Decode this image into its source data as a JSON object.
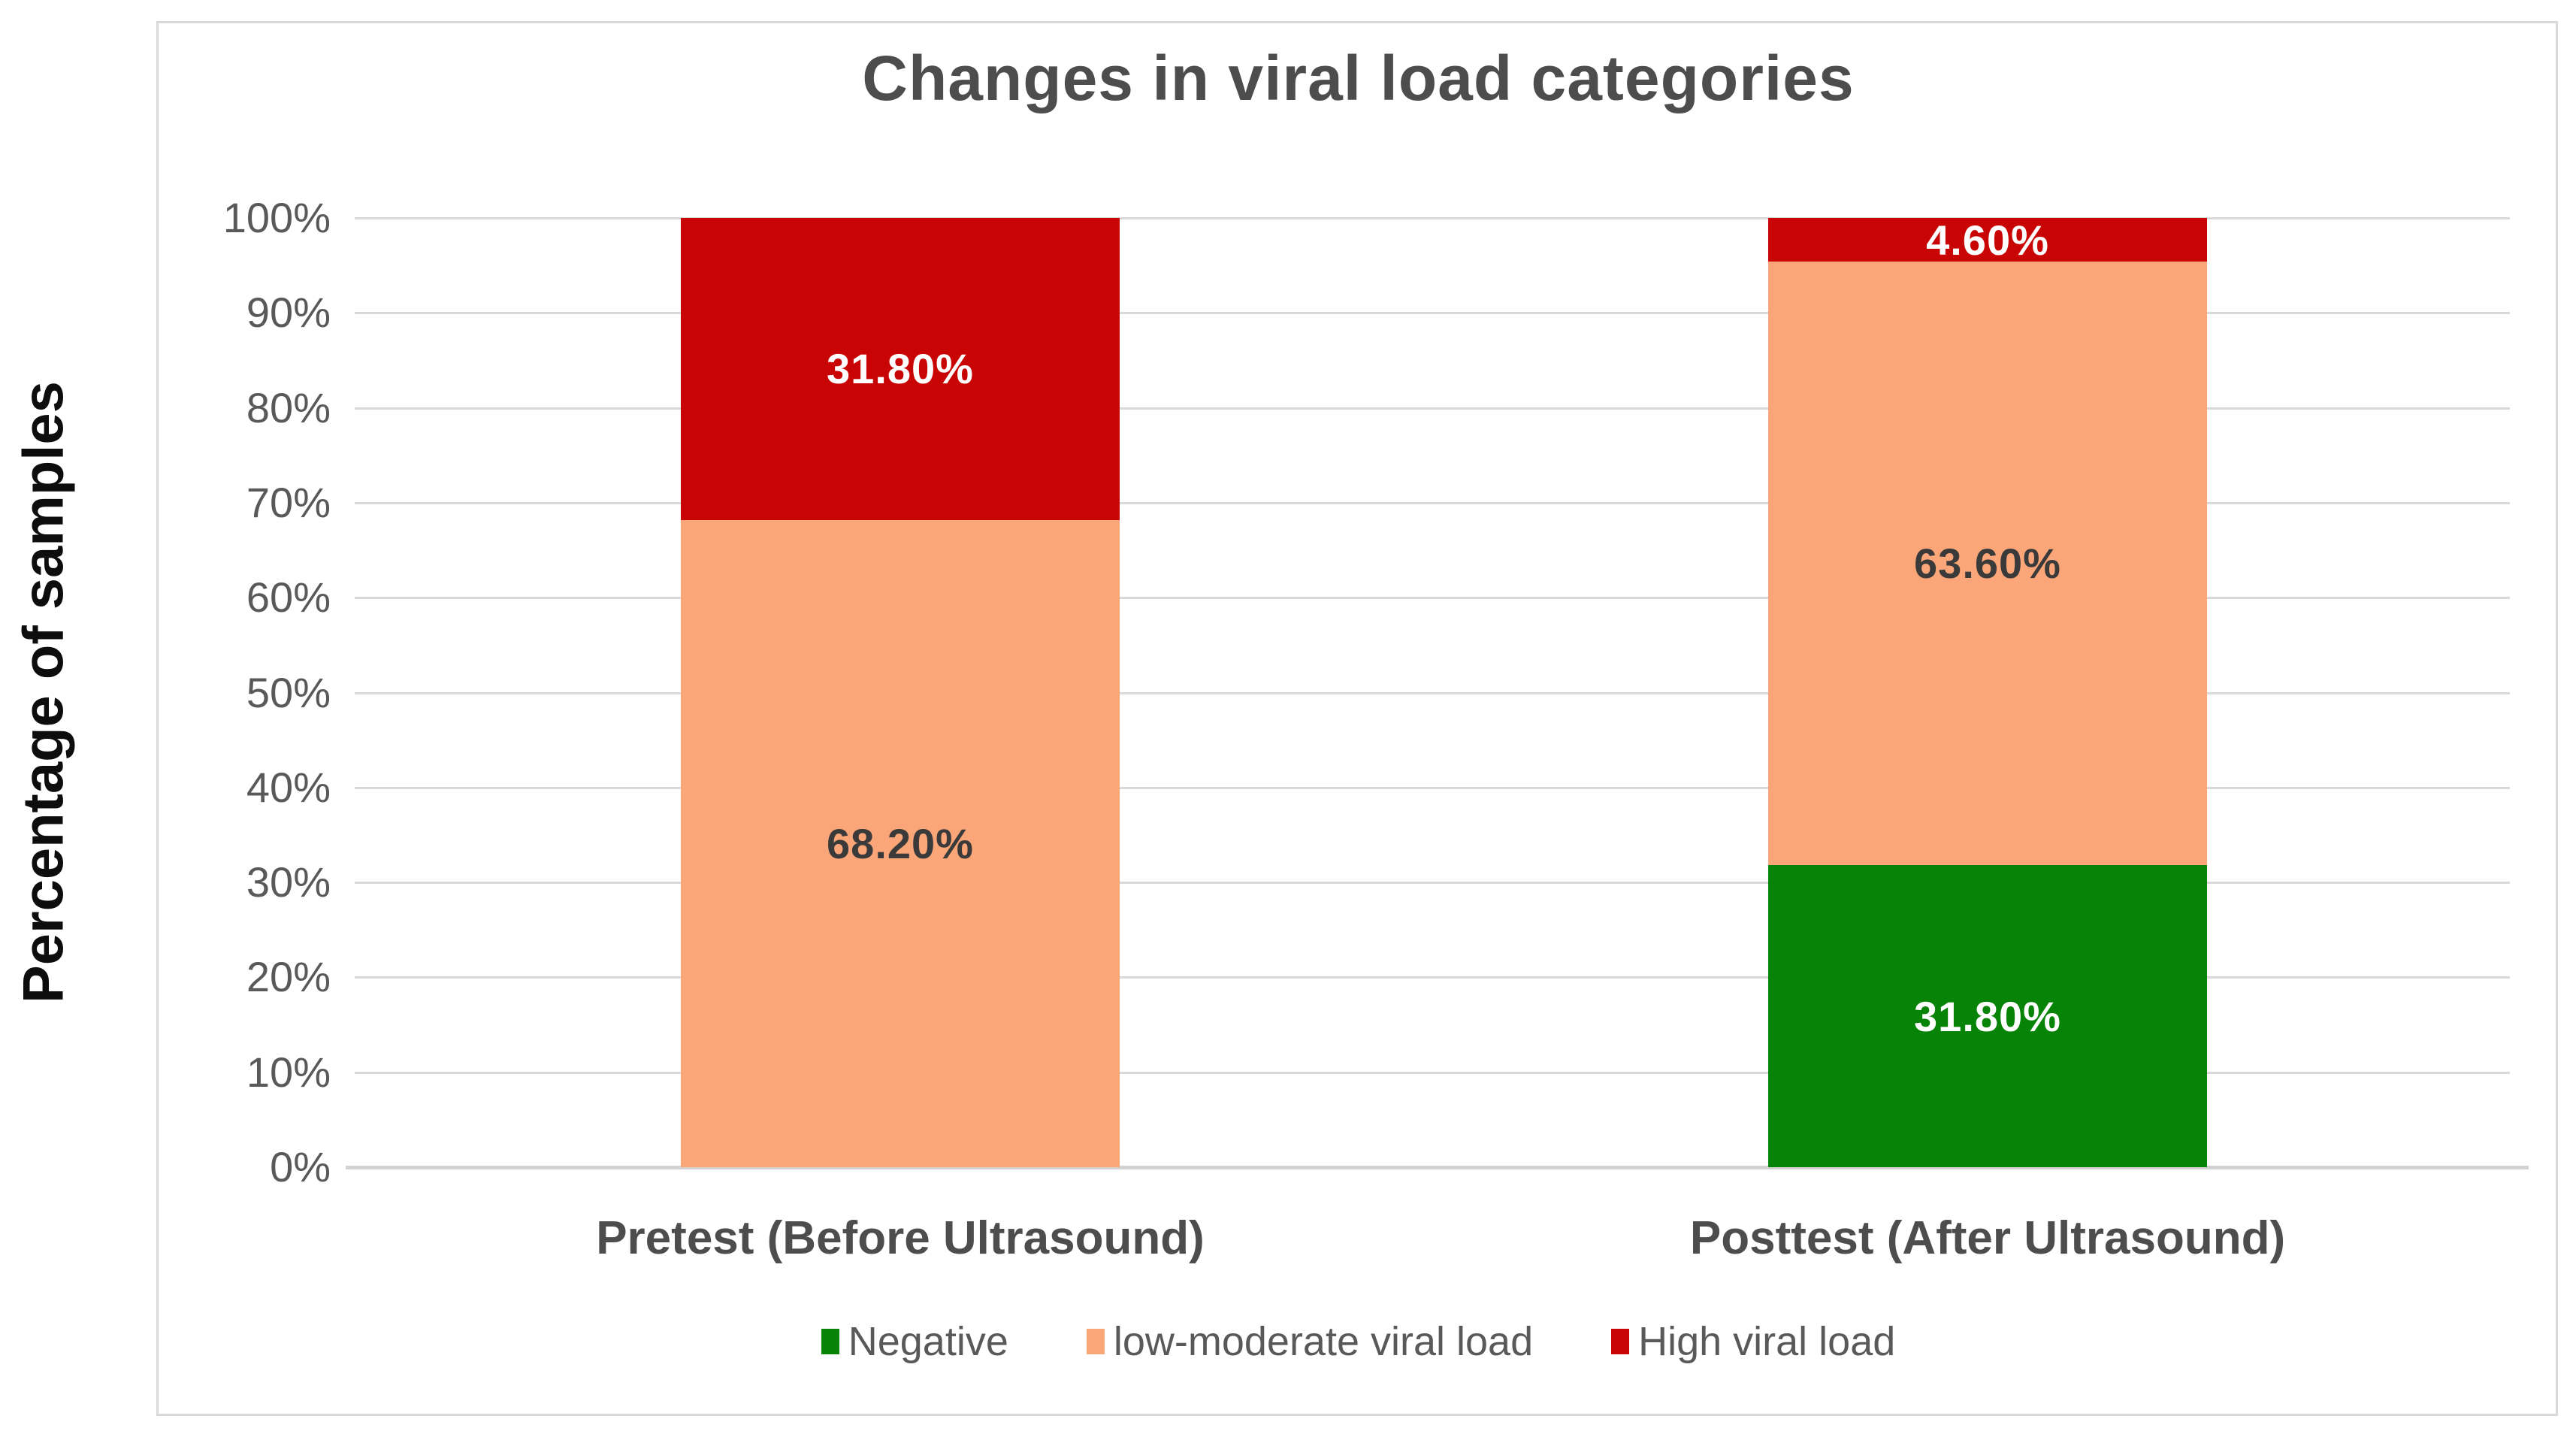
{
  "chart_data": {
    "type": "bar",
    "subtype": "stacked-percentage",
    "title": "Changes in viral load categories",
    "ylabel": "Percentage of samples",
    "xlabel": "",
    "categories": [
      "Pretest (Before Ultrasound)",
      "Posttest (After Ultrasound)"
    ],
    "series": [
      {
        "name": "Negative",
        "color": "#078307",
        "label_color": "#ffffff",
        "values": [
          0,
          31.8
        ],
        "labels": [
          "",
          "31.80%"
        ]
      },
      {
        "name": "low-moderate viral load",
        "color": "#FAA679",
        "label_color": "#3a3a3a",
        "values": [
          68.2,
          63.6
        ],
        "labels": [
          "68.20%",
          "63.60%"
        ]
      },
      {
        "name": "High viral load",
        "color": "#C90404",
        "label_color": "#ffffff",
        "values": [
          31.8,
          4.6
        ],
        "labels": [
          "31.80%",
          "4.60%"
        ]
      }
    ],
    "y_ticks": [
      "0%",
      "10%",
      "20%",
      "30%",
      "40%",
      "50%",
      "60%",
      "70%",
      "80%",
      "90%",
      "100%"
    ],
    "ylim": [
      0,
      100
    ],
    "grid": true,
    "legend_position": "bottom"
  }
}
